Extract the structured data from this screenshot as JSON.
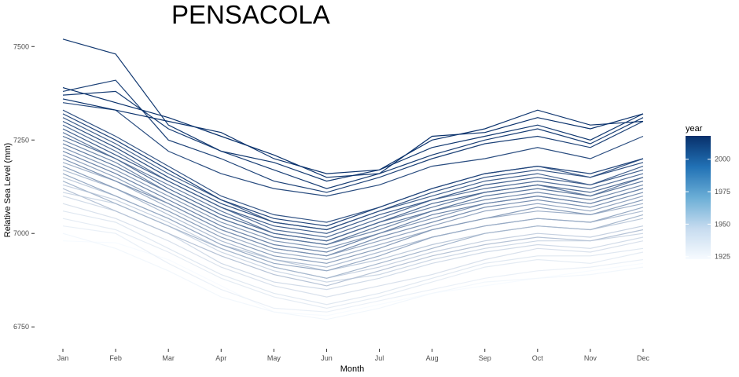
{
  "chart_data": {
    "type": "line",
    "title": "PENSACOLA",
    "xlabel": "Month",
    "ylabel": "Relative Sea Level (mm)",
    "categories": [
      "Jan",
      "Feb",
      "Mar",
      "Apr",
      "May",
      "Jun",
      "Jul",
      "Aug",
      "Sep",
      "Oct",
      "Nov",
      "Dec"
    ],
    "ylim": [
      6700,
      7530
    ],
    "yticks": [
      6750,
      7000,
      7250,
      7500
    ],
    "legend": {
      "title": "year",
      "position": "right",
      "ticks": [
        1925,
        1950,
        1975,
        2000
      ],
      "range": [
        1923,
        2018
      ],
      "color_low": "#f7fbff",
      "color_high": "#08306b"
    },
    "grid": false,
    "series_by_year": [
      {
        "year": 1923,
        "values": [
          6980,
          6975,
          6930,
          6860,
          6790,
          6780,
          6810,
          6840,
          6860,
          6880,
          6900,
          6920
        ]
      },
      {
        "year": 1925,
        "values": [
          7000,
          6960,
          6900,
          6830,
          6790,
          6770,
          6800,
          6840,
          6870,
          6880,
          6890,
          6910
        ]
      },
      {
        "year": 1928,
        "values": [
          7020,
          7000,
          6920,
          6850,
          6800,
          6790,
          6820,
          6850,
          6880,
          6900,
          6910,
          6930
        ]
      },
      {
        "year": 1930,
        "values": [
          7040,
          7010,
          6950,
          6880,
          6830,
          6800,
          6830,
          6870,
          6910,
          6930,
          6920,
          6950
        ]
      },
      {
        "year": 1932,
        "values": [
          7060,
          7030,
          6960,
          6890,
          6840,
          6810,
          6840,
          6880,
          6920,
          6940,
          6940,
          6960
        ]
      },
      {
        "year": 1935,
        "values": [
          7080,
          7040,
          6980,
          6910,
          6860,
          6830,
          6860,
          6890,
          6930,
          6960,
          6950,
          6980
        ]
      },
      {
        "year": 1938,
        "values": [
          7100,
          7060,
          7000,
          6920,
          6870,
          6850,
          6880,
          6920,
          6950,
          6970,
          6960,
          6990
        ]
      },
      {
        "year": 1940,
        "values": [
          7110,
          7080,
          7020,
          6950,
          6900,
          6870,
          6890,
          6930,
          6960,
          6980,
          6980,
          7000
        ]
      },
      {
        "year": 1943,
        "values": [
          7130,
          7090,
          7030,
          6960,
          6910,
          6880,
          6910,
          6950,
          6980,
          7000,
          6990,
          7020
        ]
      },
      {
        "year": 1946,
        "values": [
          7150,
          7100,
          7040,
          6970,
          6930,
          6900,
          6930,
          6970,
          7000,
          7020,
          7010,
          7040
        ]
      },
      {
        "year": 1949,
        "values": [
          7120,
          7060,
          7000,
          6940,
          6890,
          6860,
          6900,
          6940,
          6970,
          6990,
          6980,
          7010
        ]
      },
      {
        "year": 1952,
        "values": [
          7170,
          7120,
          7050,
          6980,
          6930,
          6910,
          6950,
          6990,
          7020,
          7040,
          7030,
          7060
        ]
      },
      {
        "year": 1955,
        "values": [
          7140,
          7080,
          7020,
          6960,
          6910,
          6880,
          6920,
          6960,
          7000,
          7020,
          7010,
          7050
        ]
      },
      {
        "year": 1958,
        "values": [
          7190,
          7140,
          7070,
          7000,
          6950,
          6930,
          6970,
          7010,
          7040,
          7060,
          7050,
          7080
        ]
      },
      {
        "year": 1961,
        "values": [
          7160,
          7100,
          7040,
          6970,
          6920,
          6900,
          6940,
          6990,
          7020,
          7040,
          7030,
          7070
        ]
      },
      {
        "year": 1964,
        "values": [
          7210,
          7150,
          7080,
          7010,
          6960,
          6940,
          6980,
          7020,
          7060,
          7080,
          7060,
          7100
        ]
      },
      {
        "year": 1967,
        "values": [
          7180,
          7120,
          7060,
          6990,
          6940,
          6920,
          6960,
          7010,
          7040,
          7070,
          7050,
          7090
        ]
      },
      {
        "year": 1970,
        "values": [
          7230,
          7170,
          7100,
          7030,
          6980,
          6960,
          7000,
          7040,
          7080,
          7100,
          7080,
          7120
        ]
      },
      {
        "year": 1973,
        "values": [
          7200,
          7140,
          7080,
          7010,
          6960,
          6940,
          6990,
          7030,
          7070,
          7090,
          7070,
          7110
        ]
      },
      {
        "year": 1976,
        "values": [
          7250,
          7190,
          7110,
          7040,
          6990,
          6970,
          7010,
          7060,
          7090,
          7110,
          7090,
          7130
        ]
      },
      {
        "year": 1979,
        "values": [
          7220,
          7160,
          7090,
          7020,
          6970,
          6950,
          7000,
          7050,
          7080,
          7100,
          7080,
          7120
        ]
      },
      {
        "year": 1982,
        "values": [
          7270,
          7200,
          7130,
          7060,
          7000,
          6980,
          7030,
          7070,
          7110,
          7130,
          7100,
          7150
        ]
      },
      {
        "year": 1985,
        "values": [
          7240,
          7180,
          7110,
          7040,
          6990,
          6970,
          7020,
          7060,
          7100,
          7120,
          7100,
          7140
        ]
      },
      {
        "year": 1988,
        "values": [
          7290,
          7220,
          7140,
          7070,
          7010,
          6990,
          7040,
          7090,
          7120,
          7140,
          7120,
          7160
        ]
      },
      {
        "year": 1991,
        "values": [
          7260,
          7200,
          7120,
          7050,
          7000,
          6980,
          7030,
          7080,
          7110,
          7130,
          7110,
          7150
        ]
      },
      {
        "year": 1994,
        "values": [
          7310,
          7240,
          7160,
          7090,
          7030,
          7010,
          7060,
          7100,
          7140,
          7160,
          7130,
          7180
        ]
      },
      {
        "year": 1997,
        "values": [
          7280,
          7210,
          7140,
          7070,
          7020,
          7000,
          7050,
          7090,
          7130,
          7150,
          7130,
          7170
        ]
      },
      {
        "year": 2000,
        "values": [
          7330,
          7260,
          7180,
          7100,
          7050,
          7030,
          7070,
          7120,
          7160,
          7180,
          7150,
          7200
        ]
      },
      {
        "year": 2003,
        "values": [
          7300,
          7230,
          7150,
          7080,
          7030,
          7010,
          7060,
          7110,
          7150,
          7170,
          7150,
          7190
        ]
      },
      {
        "year": 2005,
        "values": [
          7350,
          7330,
          7220,
          7160,
          7120,
          7100,
          7130,
          7180,
          7200,
          7230,
          7200,
          7260
        ]
      },
      {
        "year": 2008,
        "values": [
          7320,
          7250,
          7170,
          7090,
          7040,
          7020,
          7070,
          7120,
          7160,
          7180,
          7160,
          7200
        ]
      },
      {
        "year": 2010,
        "values": [
          7380,
          7410,
          7250,
          7200,
          7140,
          7110,
          7150,
          7200,
          7240,
          7260,
          7230,
          7300
        ]
      },
      {
        "year": 2012,
        "values": [
          7370,
          7380,
          7280,
          7220,
          7170,
          7120,
          7160,
          7210,
          7250,
          7280,
          7240,
          7310
        ]
      },
      {
        "year": 2014,
        "values": [
          7520,
          7480,
          7290,
          7220,
          7190,
          7140,
          7170,
          7230,
          7260,
          7290,
          7250,
          7320
        ]
      },
      {
        "year": 2016,
        "values": [
          7360,
          7330,
          7300,
          7270,
          7200,
          7160,
          7170,
          7250,
          7280,
          7330,
          7290,
          7300
        ]
      },
      {
        "year": 2018,
        "values": [
          7390,
          7350,
          7310,
          7260,
          7210,
          7150,
          7160,
          7260,
          7270,
          7310,
          7280,
          7320
        ]
      }
    ]
  }
}
